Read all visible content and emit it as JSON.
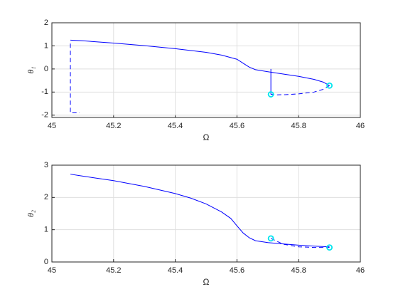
{
  "chart_data": [
    {
      "type": "line",
      "xlabel": "Ω",
      "ylabel": "θ₁",
      "xlim": [
        45,
        46
      ],
      "ylim": [
        -2.1,
        2
      ],
      "xticks": [
        45,
        45.2,
        45.4,
        45.6,
        45.8,
        46
      ],
      "yticks": [
        -2,
        -1,
        0,
        1,
        2
      ],
      "grid": true,
      "series": [
        {
          "color": "#0000ff",
          "style": "solid",
          "x": [
            45.06,
            45.1,
            45.2,
            45.3,
            45.4,
            45.5,
            45.55,
            45.6,
            45.62,
            45.64,
            45.66,
            45.7,
            45.75,
            45.8,
            45.85,
            45.88,
            45.9
          ],
          "values": [
            1.25,
            1.22,
            1.12,
            1.01,
            0.88,
            0.72,
            0.6,
            0.42,
            0.25,
            0.08,
            -0.03,
            -0.12,
            -0.22,
            -0.32,
            -0.45,
            -0.57,
            -0.72
          ]
        },
        {
          "color": "#0000ff",
          "style": "dashed",
          "x": [
            45.9,
            45.88,
            45.85,
            45.8,
            45.76,
            45.73,
            45.71
          ],
          "values": [
            -0.72,
            -0.88,
            -1.0,
            -1.08,
            -1.11,
            -1.12,
            -1.1
          ]
        },
        {
          "color": "#0000ff",
          "style": "solid",
          "x": [
            45.71,
            45.71
          ],
          "values": [
            0,
            -1.1
          ]
        },
        {
          "color": "#0000ff",
          "style": "dashed",
          "x": [
            45.06,
            45.06,
            45.09
          ],
          "values": [
            1.1,
            -1.9,
            -1.9
          ]
        },
        {
          "color": "#00e5ee",
          "marker": "circle",
          "x": [
            45.71,
            45.9
          ],
          "values": [
            -1.1,
            -0.72
          ]
        }
      ]
    },
    {
      "type": "line",
      "xlabel": "Ω",
      "ylabel": "θ₂",
      "xlim": [
        45,
        46
      ],
      "ylim": [
        0,
        3
      ],
      "xticks": [
        45,
        45.2,
        45.4,
        45.6,
        45.8,
        46
      ],
      "yticks": [
        0,
        1,
        2,
        3
      ],
      "grid": true,
      "series": [
        {
          "color": "#0000ff",
          "style": "solid",
          "x": [
            45.06,
            45.1,
            45.2,
            45.3,
            45.4,
            45.45,
            45.5,
            45.55,
            45.58,
            45.6,
            45.62,
            45.64,
            45.66,
            45.7,
            45.75,
            45.8,
            45.85,
            45.9
          ],
          "values": [
            2.72,
            2.66,
            2.52,
            2.34,
            2.12,
            1.98,
            1.8,
            1.55,
            1.35,
            1.12,
            0.9,
            0.75,
            0.66,
            0.6,
            0.56,
            0.52,
            0.49,
            0.47
          ]
        },
        {
          "color": "#0000ff",
          "style": "dashed",
          "x": [
            45.71,
            45.75,
            45.8,
            45.85,
            45.9
          ],
          "values": [
            0.73,
            0.55,
            0.47,
            0.45,
            0.45
          ]
        },
        {
          "color": "#00e5ee",
          "marker": "circle",
          "x": [
            45.71,
            45.9
          ],
          "values": [
            0.73,
            0.45
          ]
        }
      ]
    }
  ]
}
